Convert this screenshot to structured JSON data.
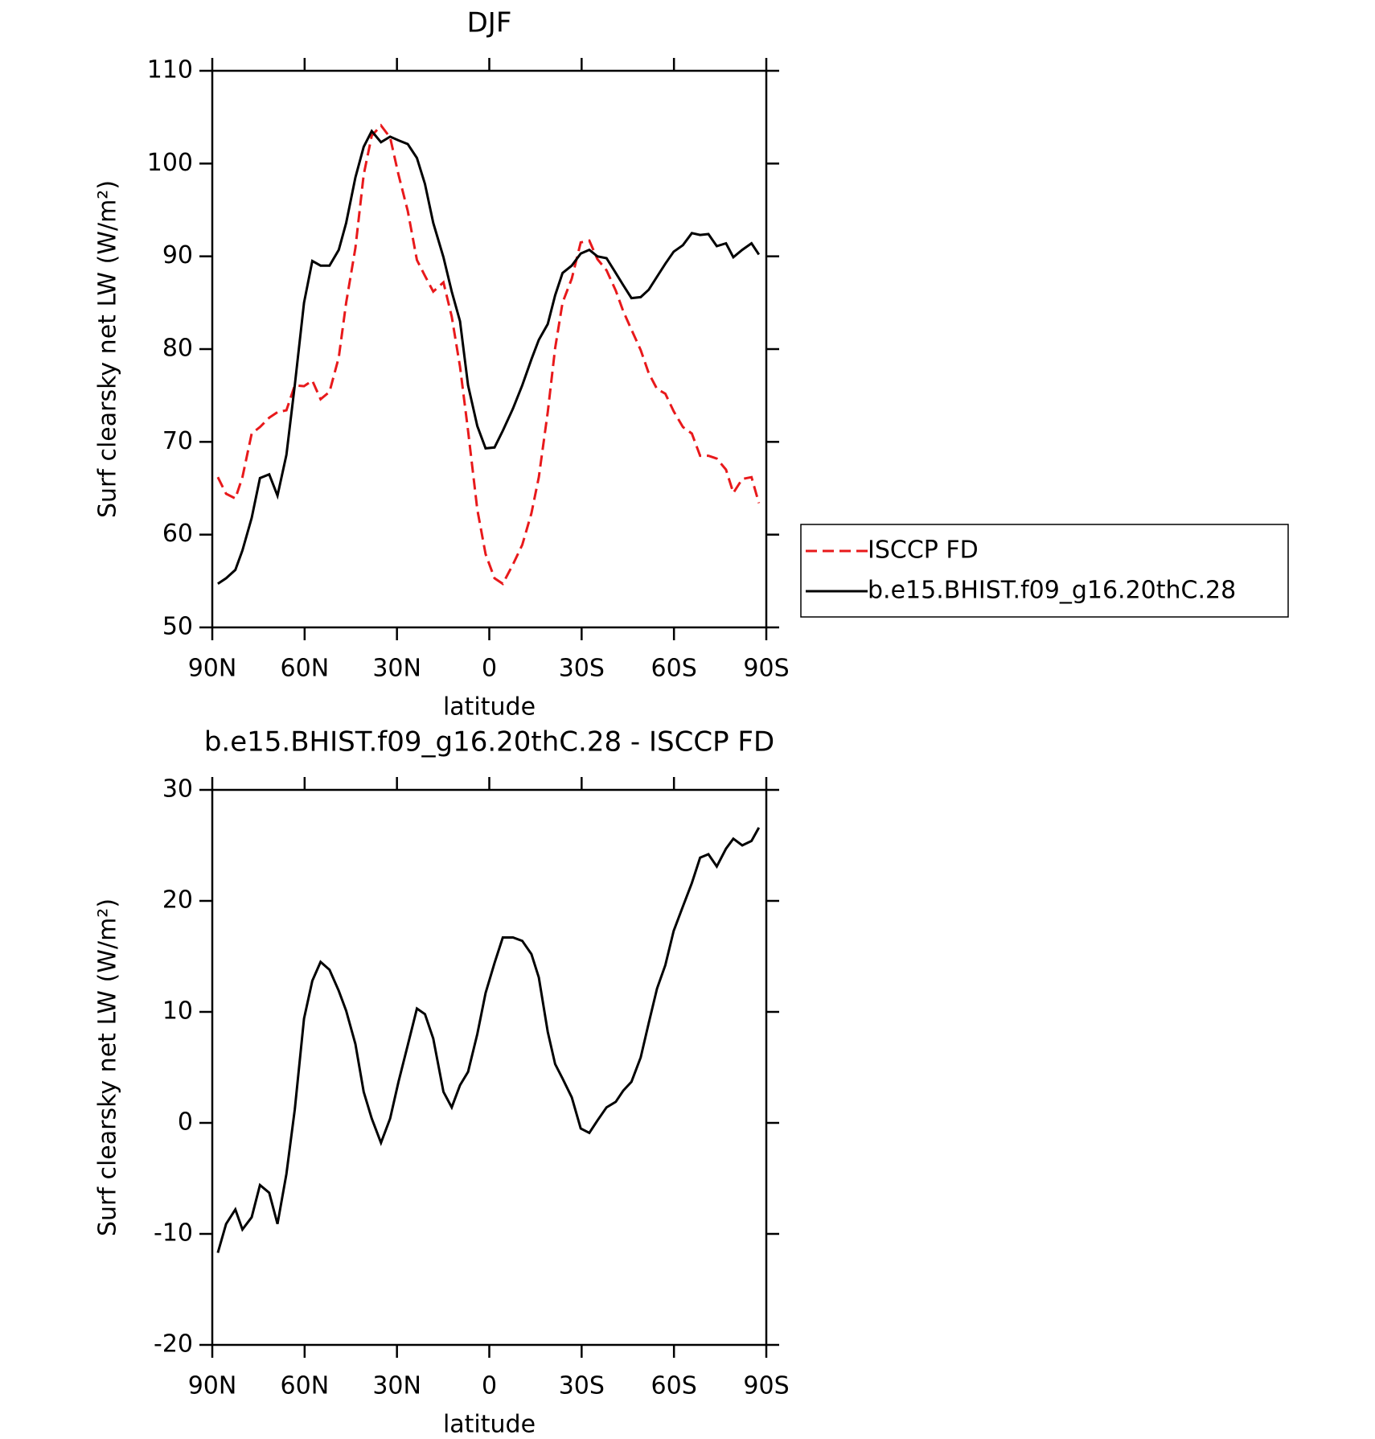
{
  "chart_data": [
    {
      "type": "line",
      "title": "DJF",
      "xlabel": "latitude",
      "ylabel": "Surf clearsky net LW (W/m²)",
      "xlim": [
        90,
        -90
      ],
      "xticks": [
        {
          "value": 90,
          "label": "90N"
        },
        {
          "value": 60,
          "label": "60N"
        },
        {
          "value": 30,
          "label": "30N"
        },
        0,
        {
          "value": -30,
          "label": "30S"
        },
        {
          "value": -60,
          "label": "60S"
        },
        {
          "value": -90,
          "label": "90S"
        }
      ],
      "ylim": [
        50,
        110
      ],
      "yticks": [
        50,
        60,
        70,
        80,
        90,
        100,
        110
      ],
      "legend": "right",
      "x": [
        88.2,
        85.5,
        82.5,
        80.2,
        77.2,
        74.5,
        71.5,
        68.8,
        65.9,
        63.2,
        60.2,
        57.5,
        54.8,
        51.9,
        48.9,
        46.5,
        43.5,
        40.8,
        38.2,
        35.2,
        32.2,
        29.5,
        26.5,
        23.5,
        20.9,
        18.2,
        14.9,
        12.2,
        9.5,
        6.9,
        3.9,
        1.2,
        -1.7,
        -4.4,
        -7.7,
        -10.7,
        -13.7,
        -16.1,
        -19.0,
        -21.4,
        -23.8,
        -26.8,
        -29.7,
        -32.5,
        -35.1,
        -38.1,
        -41.1,
        -43.5,
        -46.2,
        -49.2,
        -51.8,
        -54.5,
        -57.2,
        -59.9,
        -62.9,
        -65.8,
        -68.5,
        -71.2,
        -73.9,
        -76.9,
        -79.3,
        -82.2,
        -85.2,
        -87.6
      ],
      "series": [
        {
          "name": "ISCCP FD",
          "color": "#e8191b",
          "dash": true,
          "values": [
            66.2,
            64.4,
            63.9,
            66.2,
            70.9,
            71.6,
            72.6,
            73.2,
            73.4,
            76.1,
            76.0,
            76.6,
            74.6,
            75.4,
            79.1,
            85.0,
            90.9,
            98.8,
            103.0,
            104.1,
            102.8,
            98.8,
            94.9,
            89.6,
            87.9,
            86.2,
            87.2,
            83.5,
            78.1,
            71.2,
            62.7,
            57.9,
            55.3,
            54.7,
            56.8,
            58.9,
            62.3,
            66.2,
            73.2,
            80.1,
            85.0,
            87.6,
            91.5,
            91.7,
            89.7,
            88.5,
            86.3,
            84.1,
            82.1,
            79.9,
            77.4,
            75.7,
            75.2,
            73.3,
            71.6,
            70.9,
            68.5,
            68.5,
            68.2,
            67.0,
            64.5,
            66.0,
            66.2,
            63.4
          ]
        },
        {
          "name": "b.e15.BHIST.f09_g16.20thC.28",
          "color": "#000000",
          "dash": false,
          "values": [
            54.7,
            55.3,
            56.2,
            58.3,
            61.8,
            66.1,
            66.5,
            64.2,
            68.6,
            76.1,
            85.0,
            89.5,
            89.0,
            89.0,
            90.7,
            93.6,
            98.5,
            101.8,
            103.5,
            102.3,
            102.9,
            102.5,
            102.1,
            100.6,
            97.8,
            93.6,
            89.9,
            86.2,
            83.0,
            76.1,
            71.7,
            69.3,
            69.4,
            71.2,
            73.6,
            76.1,
            78.9,
            81.0,
            82.7,
            85.8,
            88.2,
            89.0,
            90.3,
            90.7,
            90.0,
            89.8,
            88.2,
            86.9,
            85.5,
            85.6,
            86.4,
            87.8,
            89.2,
            90.5,
            91.2,
            92.5,
            92.3,
            92.4,
            91.1,
            91.4,
            89.9,
            90.7,
            91.4,
            90.2
          ]
        }
      ]
    },
    {
      "type": "line",
      "title": "b.e15.BHIST.f09_g16.20thC.28 - ISCCP FD",
      "xlabel": "latitude",
      "ylabel": "Surf clearsky net LW (W/m²)",
      "xlim": [
        90,
        -90
      ],
      "xticks": [
        {
          "value": 90,
          "label": "90N"
        },
        {
          "value": 60,
          "label": "60N"
        },
        {
          "value": 30,
          "label": "30N"
        },
        0,
        {
          "value": -30,
          "label": "30S"
        },
        {
          "value": -60,
          "label": "60S"
        },
        {
          "value": -90,
          "label": "90S"
        }
      ],
      "ylim": [
        -20,
        30
      ],
      "yticks": [
        -20,
        -10,
        0,
        10,
        20,
        30
      ],
      "x": [
        88.2,
        85.5,
        82.5,
        80.2,
        77.2,
        74.5,
        71.5,
        68.8,
        65.9,
        63.2,
        60.2,
        57.5,
        54.8,
        51.9,
        48.9,
        46.5,
        43.5,
        40.8,
        38.2,
        35.2,
        32.2,
        29.5,
        26.5,
        23.5,
        20.9,
        18.2,
        14.9,
        12.2,
        9.5,
        6.9,
        3.9,
        1.2,
        -1.7,
        -4.4,
        -7.7,
        -10.7,
        -13.7,
        -16.1,
        -19.0,
        -21.4,
        -23.8,
        -26.8,
        -29.7,
        -32.5,
        -35.1,
        -38.1,
        -41.1,
        -43.5,
        -46.2,
        -49.2,
        -51.8,
        -54.5,
        -57.2,
        -59.9,
        -62.9,
        -65.8,
        -68.5,
        -71.2,
        -73.9,
        -76.9,
        -79.3,
        -82.2,
        -85.2,
        -87.6
      ],
      "series": [
        {
          "color": "#000000",
          "dash": false,
          "values": [
            -11.7,
            -9.1,
            -7.8,
            -9.6,
            -8.5,
            -5.6,
            -6.3,
            -9.1,
            -4.6,
            1.2,
            9.4,
            12.8,
            14.5,
            13.8,
            11.9,
            10.1,
            7.1,
            2.8,
            0.4,
            -1.8,
            0.4,
            3.7,
            7.0,
            10.3,
            9.8,
            7.6,
            2.8,
            1.4,
            3.4,
            4.6,
            8.0,
            11.7,
            14.4,
            16.7,
            16.7,
            16.4,
            15.2,
            13.1,
            8.2,
            5.3,
            4.0,
            2.3,
            -0.5,
            -0.9,
            0.2,
            1.4,
            1.9,
            2.9,
            3.7,
            5.9,
            9.0,
            12.1,
            14.2,
            17.3,
            19.5,
            21.6,
            23.9,
            24.2,
            23.1,
            24.7,
            25.6,
            25.0,
            25.4,
            26.6
          ]
        }
      ]
    }
  ]
}
